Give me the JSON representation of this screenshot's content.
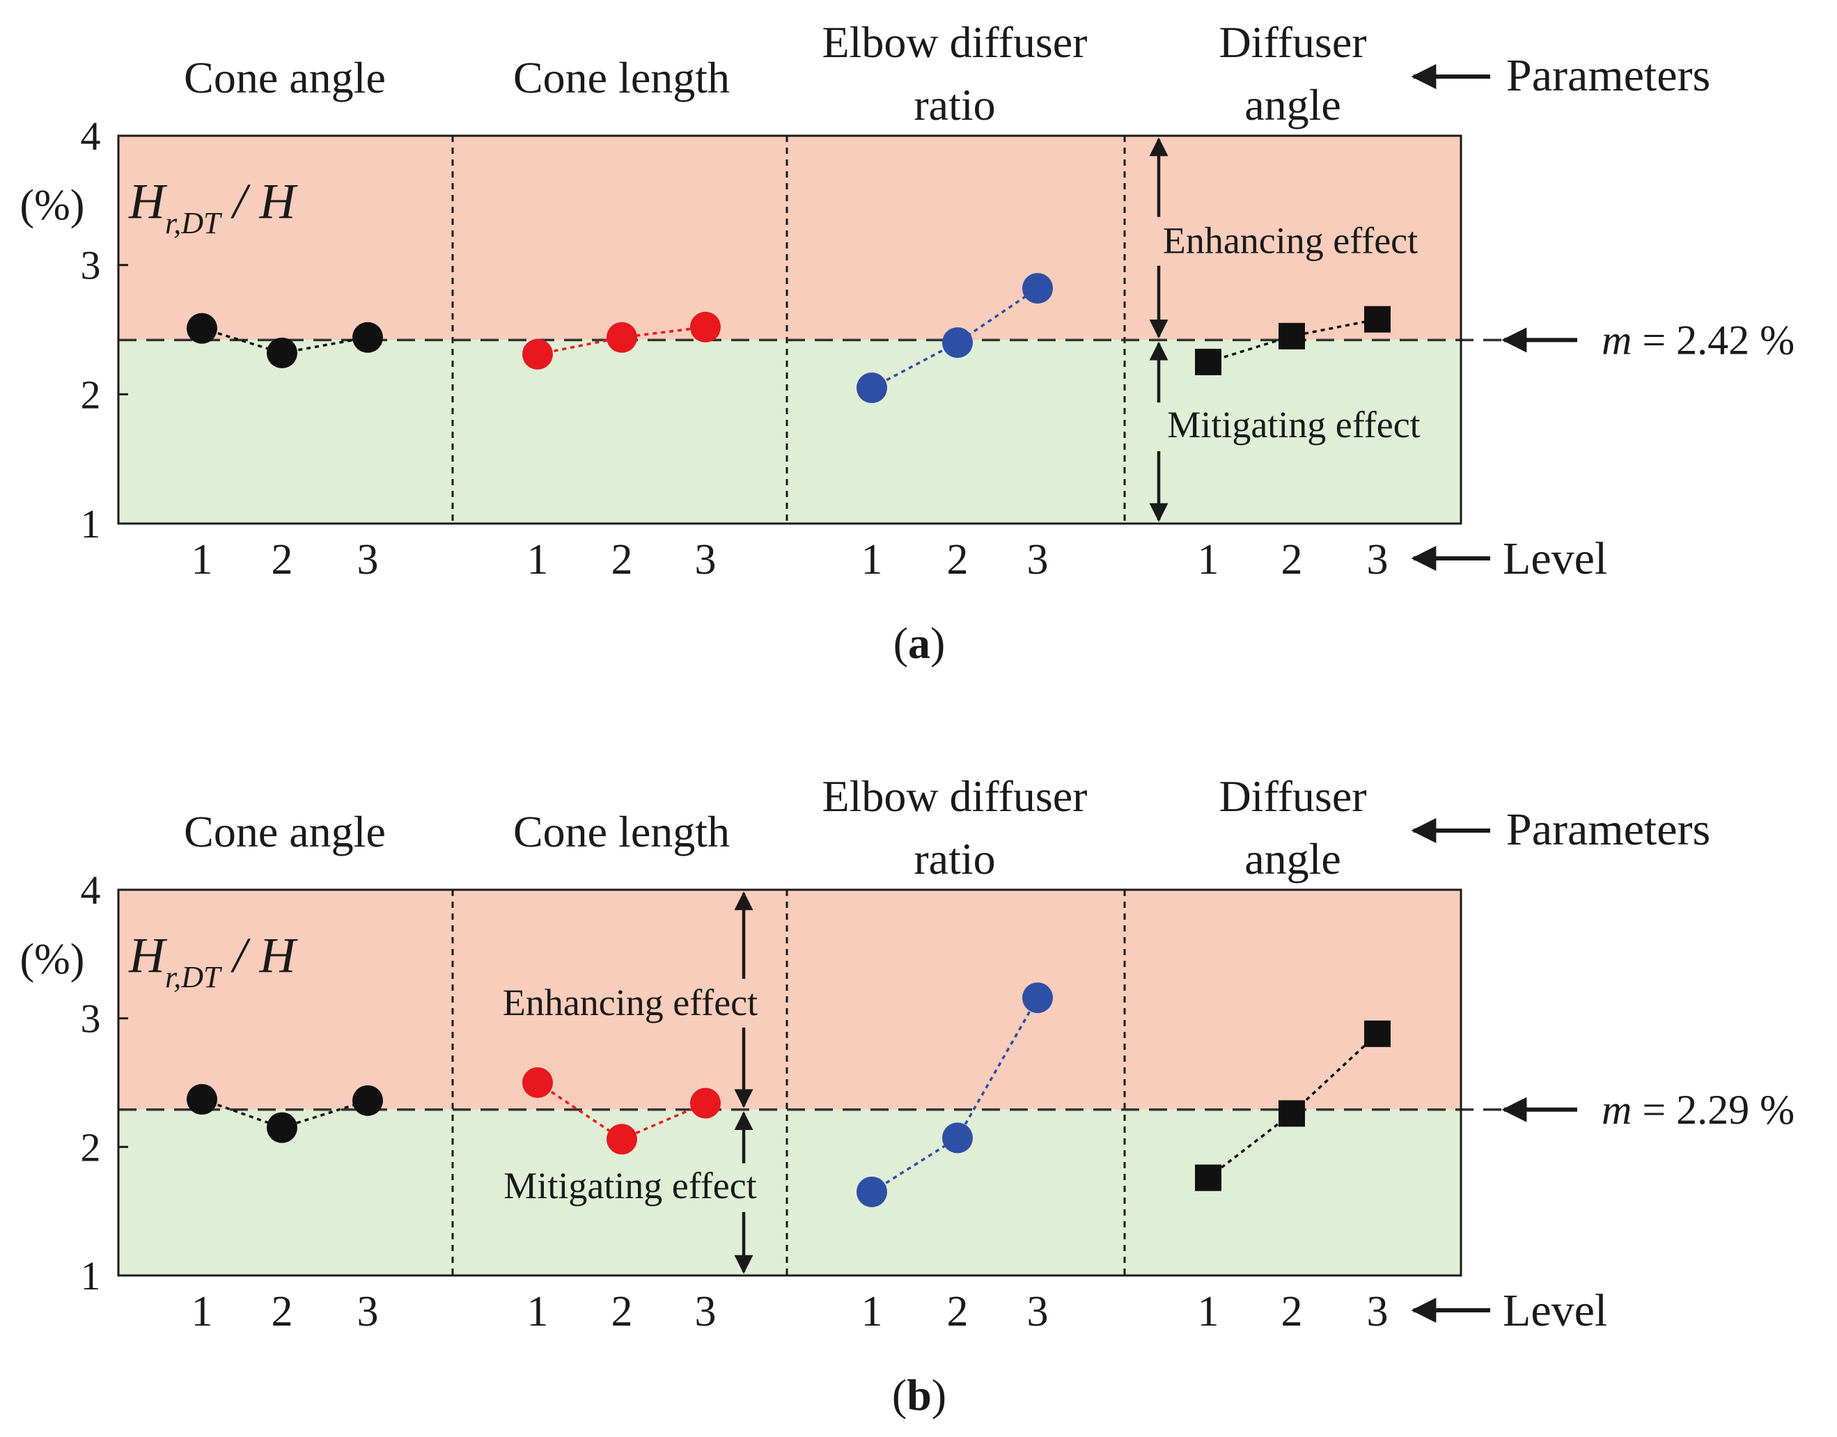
{
  "colors": {
    "enhance_bg": "#f9cdbb",
    "mitigate_bg": "#dfeed5",
    "cone_angle": "#111111",
    "cone_length": "#e8181e",
    "elbow": "#2e4fa6",
    "diffuser": "#111111"
  },
  "labels": {
    "parameters": "Parameters",
    "level": "Level",
    "enhancing": "Enhancing effect",
    "mitigating": "Mitigating effect",
    "unit": "(%)",
    "ylabel_H": "H",
    "ylabel_sub": "r,DT",
    "ylabel_rest": " / H",
    "mean_m": "m",
    "mean_prefix": " = "
  },
  "chart_data": [
    {
      "type": "line",
      "panel_label": "(a)",
      "panel_letter": "a",
      "ylim": [
        1,
        4
      ],
      "yticks": [
        "1",
        "2",
        "3",
        "4"
      ],
      "mean_value": 2.42,
      "mean_text": "2.42 %",
      "groups": [
        {
          "title": [
            "Cone angle"
          ],
          "levels": [
            "1",
            "2",
            "3"
          ],
          "values": [
            2.51,
            2.32,
            2.44
          ],
          "marker": "circle",
          "color_key": "cone_angle"
        },
        {
          "title": [
            "Cone length"
          ],
          "levels": [
            "1",
            "2",
            "3"
          ],
          "values": [
            2.31,
            2.44,
            2.52
          ],
          "marker": "circle",
          "color_key": "cone_length"
        },
        {
          "title": [
            "Elbow diffuser",
            "ratio"
          ],
          "levels": [
            "1",
            "2",
            "3"
          ],
          "values": [
            2.05,
            2.4,
            2.82
          ],
          "marker": "circle",
          "color_key": "elbow"
        },
        {
          "title": [
            "Diffuser",
            "angle"
          ],
          "levels": [
            "1",
            "2",
            "3"
          ],
          "values": [
            2.25,
            2.45,
            2.58
          ],
          "marker": "square",
          "color_key": "diffuser"
        }
      ],
      "annotation_group": 3
    },
    {
      "type": "line",
      "panel_label": "(b)",
      "panel_letter": "b",
      "ylim": [
        1,
        4
      ],
      "yticks": [
        "1",
        "2",
        "3",
        "4"
      ],
      "mean_value": 2.29,
      "mean_text": "2.29 %",
      "groups": [
        {
          "title": [
            "Cone angle"
          ],
          "levels": [
            "1",
            "2",
            "3"
          ],
          "values": [
            2.37,
            2.15,
            2.36
          ],
          "marker": "circle",
          "color_key": "cone_angle"
        },
        {
          "title": [
            "Cone length"
          ],
          "levels": [
            "1",
            "2",
            "3"
          ],
          "values": [
            2.5,
            2.06,
            2.34
          ],
          "marker": "circle",
          "color_key": "cone_length"
        },
        {
          "title": [
            "Elbow diffuser",
            "ratio"
          ],
          "levels": [
            "1",
            "2",
            "3"
          ],
          "values": [
            1.65,
            2.07,
            3.16
          ],
          "marker": "circle",
          "color_key": "elbow"
        },
        {
          "title": [
            "Diffuser",
            "angle"
          ],
          "levels": [
            "1",
            "2",
            "3"
          ],
          "values": [
            1.76,
            2.26,
            2.88
          ],
          "marker": "square",
          "color_key": "diffuser"
        }
      ],
      "annotation_group": 1
    }
  ]
}
